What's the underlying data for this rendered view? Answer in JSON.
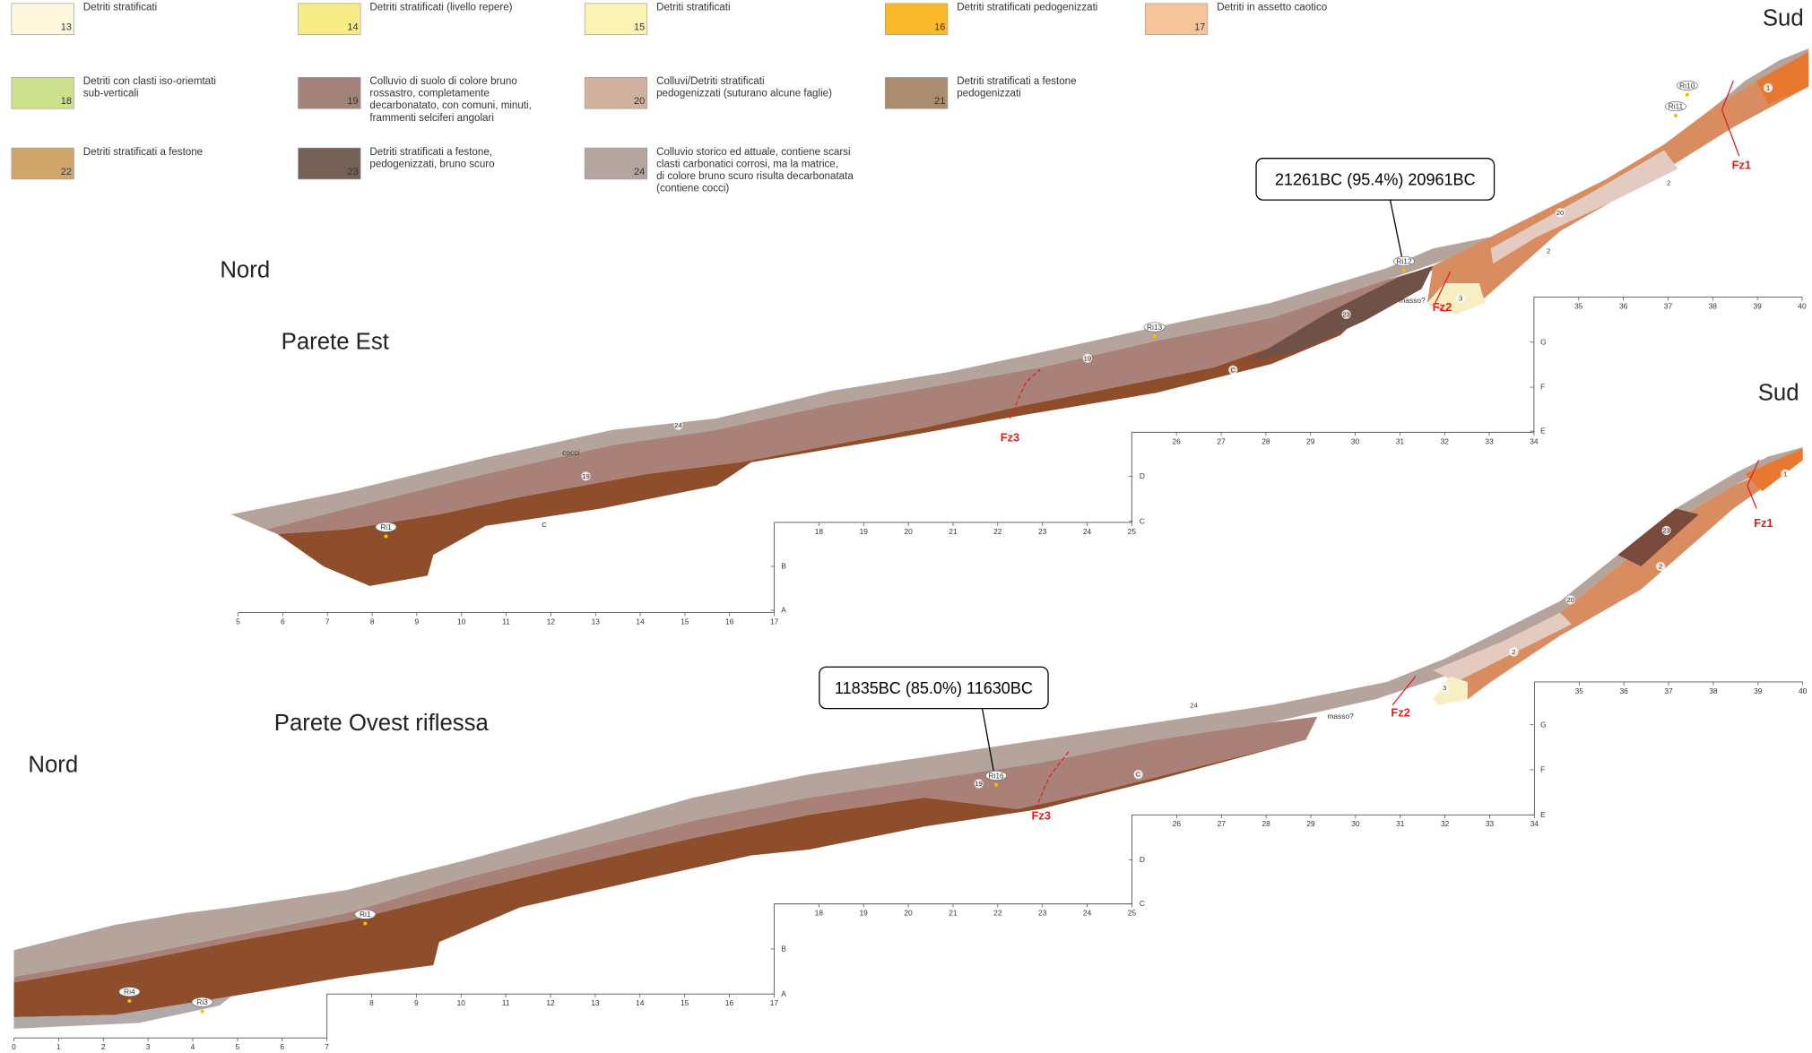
{
  "legend": [
    {
      "number": "13",
      "color": "#fdf8dc",
      "lines": [
        "Detriti stratificati"
      ]
    },
    {
      "number": "14",
      "color": "#f7ec85",
      "lines": [
        "Detriti stratificati (livello repere)"
      ]
    },
    {
      "number": "15",
      "color": "#fbf3b4",
      "lines": [
        "Detriti stratificati"
      ]
    },
    {
      "number": "16",
      "color": "#f9b92a",
      "lines": [
        "Detriti stratificati pedogenizzati"
      ]
    },
    {
      "number": "17",
      "color": "#f6c49a",
      "lines": [
        "Detriti in assetto caotico"
      ]
    },
    {
      "number": "18",
      "color": "#cde08e",
      "lines": [
        "Detriti con clasti iso-oriemtati",
        "sub-verticali"
      ]
    },
    {
      "number": "19",
      "color": "#a3827a",
      "lines": [
        "Colluvio di suolo di colore bruno",
        "rossastro, completamente",
        "decarbonatato, con comuni, minuti,",
        "frammenti selciferi angolari"
      ]
    },
    {
      "number": "20",
      "color": "#cfb19d",
      "lines": [
        "Colluvi/Detriti stratificati",
        "pedogenizzati (suturano alcune faglie)"
      ]
    },
    {
      "number": "21",
      "color": "#aa8d6f",
      "lines": [
        "Detriti stratificati a festone",
        "pedogenizzati"
      ]
    },
    {
      "number": "22",
      "color": "#d0a76a",
      "lines": [
        "Detriti stratificati a festone"
      ]
    },
    {
      "number": "23",
      "color": "#756057",
      "lines": [
        "Detriti stratificati a festone,",
        "pedogenizzati, bruno scuro"
      ]
    },
    {
      "number": "24",
      "color": "#b4a5a0",
      "lines": [
        "Colluvio storico ed attuale, contiene scarsi",
        "clasti carbonatici corrosi, ma la matrice,",
        "di colore bruno scuro risulta decarbonatata",
        "(contiene cocci)"
      ]
    }
  ],
  "sections": [
    {
      "title": "Parete Est",
      "north": "Nord",
      "south": "Sud",
      "date": "21261BC (95.4%) 20961BC",
      "faults": [
        "Fz3",
        "Fz2",
        "Fz1"
      ],
      "samples": [
        "Ri1",
        "Ri13",
        "Ri12",
        "Ri11",
        "Ri10"
      ],
      "notes": [
        "masso?",
        "cocci"
      ],
      "units": [
        "24",
        "19",
        "C",
        "19",
        "C",
        "23",
        "2",
        "3",
        "1",
        "2",
        "20"
      ],
      "axis": {
        "segments": [
          [
            5,
            6,
            7,
            8,
            9,
            10,
            11,
            12,
            13,
            14,
            15,
            16,
            17
          ],
          [
            18,
            19,
            20,
            21,
            22,
            23,
            24,
            25
          ],
          [
            26,
            27,
            28,
            29,
            30,
            31,
            32,
            33,
            34
          ],
          [
            35,
            36,
            37,
            38,
            39,
            40
          ]
        ],
        "letters": [
          "A",
          "B",
          "C",
          "D",
          "E",
          "F",
          "G"
        ]
      }
    },
    {
      "title": "Parete Ovest riflessa",
      "north": "Nord",
      "south": "Sud",
      "date": "11835BC (85.0%) 11630BC",
      "faults": [
        "Fz3",
        "Fz2",
        "Fz1"
      ],
      "samples": [
        "Ri1",
        "Ri3",
        "Ri4",
        "Ri16"
      ],
      "notes": [
        "masso?"
      ],
      "units": [
        "24",
        "C",
        "19",
        "3",
        "2",
        "1",
        "23",
        "20",
        "2"
      ],
      "axis": {
        "segments": [
          [
            0,
            1,
            2,
            3,
            4,
            5,
            6,
            7
          ],
          [
            8,
            9,
            10,
            11,
            12,
            13,
            14,
            15,
            16,
            17
          ],
          [
            18,
            19,
            20,
            21,
            22,
            23,
            24,
            25
          ],
          [
            26,
            27,
            28,
            29,
            30,
            31,
            32,
            33,
            34
          ],
          [
            35,
            36,
            37,
            38,
            39,
            40
          ]
        ],
        "letters": [
          "A",
          "B",
          "C",
          "D",
          "E",
          "F",
          "G"
        ]
      }
    }
  ]
}
